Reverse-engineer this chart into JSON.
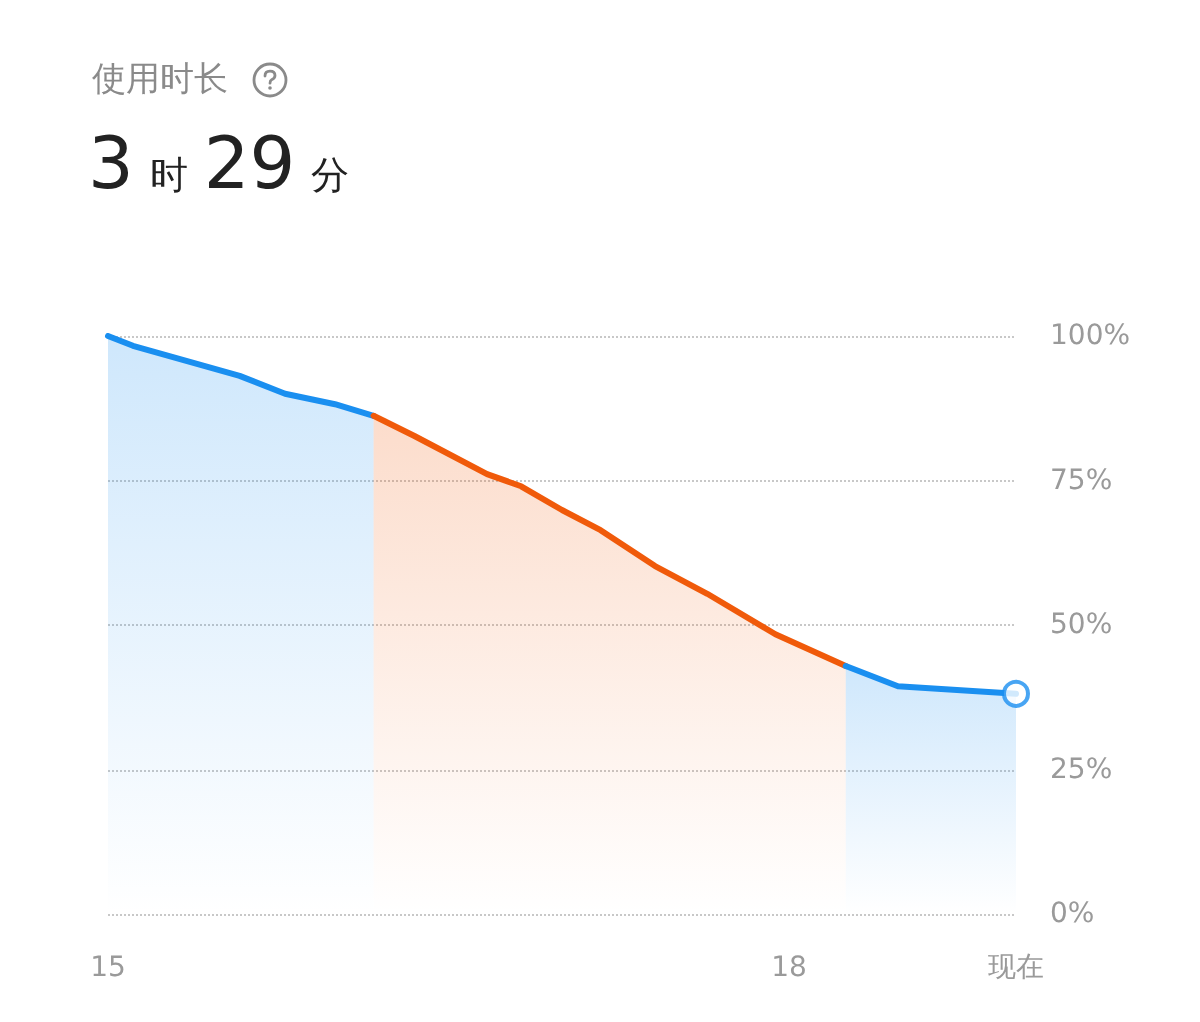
{
  "chart_data": {
    "type": "area",
    "title": "使用时长",
    "subtitle": "3 时 29 分",
    "series": [
      {
        "color": "#1a8ff0",
        "x": [
          15,
          15.11,
          15.58,
          15.78,
          16.0,
          16.17
        ],
        "values": [
          100,
          98.3,
          93.1,
          90.0,
          88.2,
          86.2
        ]
      },
      {
        "color": "#f05a0a",
        "x": [
          16.17,
          16.35,
          16.67,
          16.82,
          17.0,
          17.17,
          17.41,
          17.64,
          17.94,
          18.25
        ],
        "values": [
          86.2,
          82.7,
          76.1,
          74.0,
          69.9,
          66.4,
          60.2,
          55.4,
          48.4,
          42.9
        ]
      },
      {
        "color": "#1a8ff0",
        "x": [
          18.25,
          18.48,
          19.0
        ],
        "values": [
          42.9,
          39.4,
          38.1
        ]
      },
      {
        "type": "scatter",
        "color": "#1a8ff0",
        "marker": "circle",
        "x": [
          19.0
        ],
        "values": [
          38.1
        ]
      }
    ],
    "xlim": [
      15,
      19.0
    ],
    "xticks": [
      15,
      18,
      {
        "value": 19.0,
        "label": "现在"
      }
    ],
    "ylim": [
      0,
      100
    ],
    "yticks": [
      {
        "value": 0,
        "label": "0%"
      },
      {
        "value": 25,
        "label": "25%"
      },
      {
        "value": 50,
        "label": "50%"
      },
      {
        "value": 75,
        "label": "75%"
      },
      {
        "value": 100,
        "label": "100%"
      }
    ],
    "grid": "y"
  }
}
